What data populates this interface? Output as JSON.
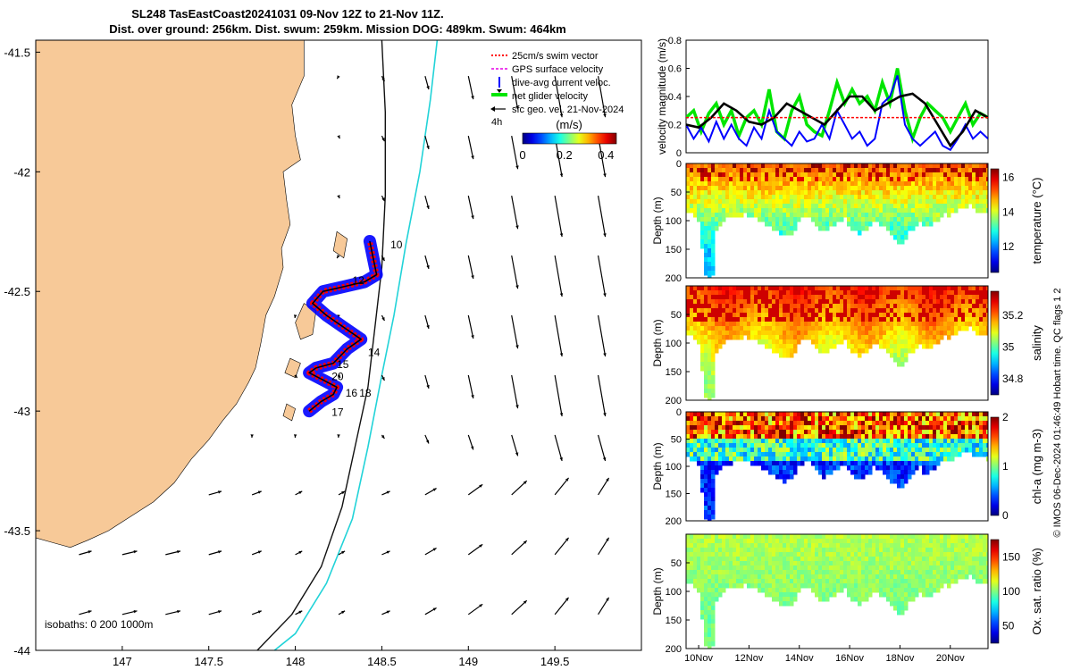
{
  "title": {
    "line1": "SL248 TasEastCoast20241031 09-Nov 12Z to 21-Nov 11Z.",
    "line2": "Dist. over ground: 256km. Dist. swum: 259km. Mission DOG: 489km. Swum: 464km"
  },
  "credit": "© IMOS 06-Dec-2024 01:46:49 Hobart time. QC flags 1  2",
  "colors": {
    "land": "#f7c998",
    "coast_line": "#000000",
    "isobath_200": "#111111",
    "isobath_1000": "#22d3d8",
    "track_red": "#ff0000",
    "track_blue": "#0000ff",
    "track_black": "#000000",
    "line_green": "#00e600",
    "line_red": "#ff0000"
  },
  "chart_data": [
    {
      "type": "map",
      "id": "track-map",
      "xlim": [
        146.5,
        150.0
      ],
      "ylim": [
        -44.0,
        -41.45
      ],
      "x_ticks": [
        "147",
        "147.5",
        "148",
        "148.5",
        "149",
        "149.5"
      ],
      "x_tick_values": [
        147,
        147.5,
        148,
        148.5,
        149,
        149.5
      ],
      "y_ticks": [
        "-41.5",
        "-42",
        "-42.5",
        "-43",
        "-43.5",
        "-44"
      ],
      "y_tick_values": [
        -41.5,
        -42,
        -42.5,
        -43,
        -43.5,
        -44
      ],
      "legend": [
        {
          "label": "25cm/s swim vector",
          "style": "dotted-red"
        },
        {
          "label": "GPS surface velocity",
          "style": "magenta"
        },
        {
          "label": "dive-avg current veloc.",
          "style": "blue"
        },
        {
          "label": "net glider velocity",
          "style": "green"
        },
        {
          "label": "sfc geo. vel. 21-Nov-2024",
          "style": "black-arrow"
        }
      ],
      "legend_extra": "4h",
      "colorbar": {
        "label": "(m/s)",
        "ticks": [
          "0",
          "0.2",
          "0.4"
        ],
        "range": [
          0,
          0.45
        ]
      },
      "isobaths_label": "isobaths: 0   200  1000m",
      "day_labels": [
        {
          "day": "10",
          "lon": 148.55,
          "lat": -42.32
        },
        {
          "day": "12",
          "lon": 148.33,
          "lat": -42.47
        },
        {
          "day": "14",
          "lon": 148.42,
          "lat": -42.77
        },
        {
          "day": "15",
          "lon": 148.24,
          "lat": -42.82
        },
        {
          "day": "20",
          "lon": 148.21,
          "lat": -42.87
        },
        {
          "day": "16",
          "lon": 148.29,
          "lat": -42.94
        },
        {
          "day": "18",
          "lon": 148.37,
          "lat": -42.94
        },
        {
          "day": "17",
          "lon": 148.21,
          "lat": -43.02
        }
      ],
      "track": [
        [
          148.08,
          -43.0
        ],
        [
          148.15,
          -42.96
        ],
        [
          148.22,
          -42.93
        ],
        [
          148.24,
          -42.9
        ],
        [
          148.16,
          -42.87
        ],
        [
          148.08,
          -42.84
        ],
        [
          148.12,
          -42.82
        ],
        [
          148.22,
          -42.8
        ],
        [
          148.3,
          -42.74
        ],
        [
          148.38,
          -42.7
        ],
        [
          148.3,
          -42.66
        ],
        [
          148.18,
          -42.6
        ],
        [
          148.1,
          -42.55
        ],
        [
          148.16,
          -42.5
        ],
        [
          148.28,
          -42.48
        ],
        [
          148.4,
          -42.46
        ],
        [
          148.47,
          -42.43
        ],
        [
          148.45,
          -42.36
        ],
        [
          148.43,
          -42.29
        ]
      ],
      "coastline": [
        [
          146.5,
          -41.45
        ],
        [
          148.05,
          -41.45
        ],
        [
          148.05,
          -41.6
        ],
        [
          147.98,
          -41.72
        ],
        [
          148.0,
          -41.85
        ],
        [
          148.03,
          -41.95
        ],
        [
          147.93,
          -42.0
        ],
        [
          147.95,
          -42.12
        ],
        [
          147.97,
          -42.22
        ],
        [
          147.92,
          -42.32
        ],
        [
          147.93,
          -42.4
        ],
        [
          147.88,
          -42.52
        ],
        [
          147.83,
          -42.6
        ],
        [
          147.8,
          -42.72
        ],
        [
          147.77,
          -42.82
        ],
        [
          147.73,
          -42.88
        ],
        [
          147.66,
          -42.97
        ],
        [
          147.58,
          -43.04
        ],
        [
          147.5,
          -43.12
        ],
        [
          147.4,
          -43.2
        ],
        [
          147.3,
          -43.3
        ],
        [
          147.18,
          -43.38
        ],
        [
          147.05,
          -43.44
        ],
        [
          146.92,
          -43.5
        ],
        [
          146.8,
          -43.54
        ],
        [
          146.7,
          -43.57
        ],
        [
          146.6,
          -43.55
        ],
        [
          146.5,
          -43.53
        ]
      ],
      "isobath_200": [
        [
          148.5,
          -41.45
        ],
        [
          148.52,
          -41.75
        ],
        [
          148.52,
          -42.1
        ],
        [
          148.5,
          -42.4
        ],
        [
          148.46,
          -42.65
        ],
        [
          148.42,
          -42.9
        ],
        [
          148.36,
          -43.1
        ],
        [
          148.27,
          -43.4
        ],
        [
          148.15,
          -43.65
        ],
        [
          147.98,
          -43.85
        ],
        [
          147.78,
          -44.0
        ]
      ],
      "isobath_1000": [
        [
          148.82,
          -41.45
        ],
        [
          148.78,
          -41.7
        ],
        [
          148.72,
          -42.0
        ],
        [
          148.64,
          -42.3
        ],
        [
          148.57,
          -42.6
        ],
        [
          148.5,
          -42.85
        ],
        [
          148.42,
          -43.15
        ],
        [
          148.33,
          -43.45
        ],
        [
          148.18,
          -43.72
        ],
        [
          148.0,
          -43.93
        ],
        [
          147.88,
          -44.0
        ]
      ],
      "velocity_field": "surface geostrophic velocity arrows, 0.25° grid, stronger southward flow offshore east of 148.6°E"
    },
    {
      "type": "line",
      "id": "velocity-magnitude",
      "ylabel": "velocity magnitude (m/s)",
      "ylim": [
        0,
        0.8
      ],
      "y_ticks": [
        "0",
        "0.2",
        "0.4",
        "0.6",
        "0.8"
      ],
      "y_tick_values": [
        0,
        0.2,
        0.4,
        0.6,
        0.8
      ],
      "x_day_range": [
        9.5,
        21.5
      ],
      "series": [
        {
          "name": "net glider velocity",
          "color": "#00e600",
          "x": [
            9.5,
            9.8,
            10.1,
            10.4,
            10.7,
            11.0,
            11.3,
            11.6,
            11.9,
            12.2,
            12.5,
            12.8,
            13.1,
            13.4,
            13.7,
            14.0,
            14.3,
            14.6,
            14.9,
            15.2,
            15.5,
            15.8,
            16.1,
            16.4,
            16.7,
            17.0,
            17.3,
            17.6,
            17.9,
            18.2,
            18.5,
            18.8,
            19.1,
            19.4,
            19.7,
            20.0,
            20.3,
            20.6,
            20.9,
            21.2,
            21.5
          ],
          "y": [
            0.25,
            0.3,
            0.15,
            0.28,
            0.35,
            0.2,
            0.3,
            0.12,
            0.25,
            0.3,
            0.2,
            0.45,
            0.15,
            0.1,
            0.3,
            0.4,
            0.2,
            0.15,
            0.12,
            0.3,
            0.5,
            0.35,
            0.45,
            0.35,
            0.4,
            0.3,
            0.5,
            0.35,
            0.6,
            0.3,
            0.1,
            0.25,
            0.35,
            0.3,
            0.25,
            0.15,
            0.25,
            0.35,
            0.2,
            0.28,
            0.25
          ]
        },
        {
          "name": "dive-avg current",
          "color": "#0000ff",
          "x": [
            9.5,
            9.8,
            10.1,
            10.4,
            10.7,
            11.0,
            11.3,
            11.6,
            11.9,
            12.2,
            12.5,
            12.8,
            13.1,
            13.4,
            13.7,
            14.0,
            14.3,
            14.6,
            14.9,
            15.2,
            15.5,
            15.8,
            16.1,
            16.4,
            16.7,
            17.0,
            17.3,
            17.6,
            17.9,
            18.2,
            18.5,
            18.8,
            19.1,
            19.4,
            19.7,
            20.0,
            20.3,
            20.6,
            20.9,
            21.2,
            21.5
          ],
          "y": [
            0.2,
            0.1,
            0.18,
            0.08,
            0.22,
            0.1,
            0.2,
            0.1,
            0.05,
            0.18,
            0.1,
            0.3,
            0.15,
            0.1,
            0.05,
            0.15,
            0.08,
            0.1,
            0.2,
            0.1,
            0.3,
            0.2,
            0.1,
            0.15,
            0.05,
            0.1,
            0.35,
            0.4,
            0.55,
            0.2,
            0.1,
            0.05,
            0.1,
            0.15,
            0.05,
            0.02,
            0.1,
            0.2,
            0.1,
            0.15,
            0.1
          ]
        },
        {
          "name": "sfc geo. vel.",
          "color": "#000000",
          "x": [
            9.5,
            10.0,
            10.5,
            11.0,
            11.5,
            12.0,
            12.5,
            13.0,
            13.5,
            14.0,
            14.5,
            15.0,
            15.5,
            16.0,
            16.5,
            17.0,
            17.5,
            18.0,
            18.5,
            19.0,
            19.5,
            20.0,
            20.5,
            21.0,
            21.5
          ],
          "y": [
            0.2,
            0.18,
            0.25,
            0.35,
            0.3,
            0.22,
            0.2,
            0.25,
            0.35,
            0.3,
            0.25,
            0.2,
            0.3,
            0.4,
            0.4,
            0.3,
            0.35,
            0.4,
            0.42,
            0.35,
            0.2,
            0.05,
            0.15,
            0.3,
            0.25
          ]
        },
        {
          "name": "25cm/s swim vector",
          "color": "#ff0000",
          "x": [
            9.5,
            21.5
          ],
          "y": [
            0.25,
            0.25
          ]
        }
      ]
    },
    {
      "type": "heatmap",
      "id": "temperature",
      "ylabel": "Depth (m)",
      "cbar_label": "temperature (°C)",
      "cbar_ticks": [
        "12",
        "14",
        "16"
      ],
      "cbar_tick_values": [
        12,
        14,
        16
      ],
      "crange": [
        10.5,
        16.5
      ],
      "ylim": [
        200,
        0
      ],
      "y_ticks": [
        "0",
        "50",
        "100",
        "150",
        "200"
      ],
      "y_tick_values": [
        0,
        50,
        100,
        150,
        200
      ],
      "surface_value": 15.2,
      "deep_value": 12.5
    },
    {
      "type": "heatmap",
      "id": "salinity",
      "ylabel": "Depth (m)",
      "cbar_label": "salinity",
      "cbar_ticks": [
        "34.8",
        "35",
        "35.2"
      ],
      "cbar_tick_values": [
        34.8,
        35.0,
        35.2
      ],
      "crange": [
        34.7,
        35.35
      ],
      "ylim": [
        200,
        0
      ],
      "y_ticks": [
        "50",
        "100",
        "150",
        "200"
      ],
      "y_tick_values": [
        50,
        100,
        150,
        200
      ],
      "surface_value": 35.25,
      "deep_value": 35.05
    },
    {
      "type": "heatmap",
      "id": "chlorophyll",
      "ylabel": "Depth (m)",
      "cbar_label": "chl-a (mg m-3)",
      "cbar_ticks": [
        "0",
        "1",
        "2"
      ],
      "cbar_tick_values": [
        0,
        1,
        2
      ],
      "crange": [
        0,
        2
      ],
      "ylim": [
        200,
        0
      ],
      "y_ticks": [
        "0",
        "50",
        "100",
        "150",
        "200"
      ],
      "y_tick_values": [
        0,
        50,
        100,
        150,
        200
      ],
      "surface_value": 1.6,
      "deep_value": 0.35
    },
    {
      "type": "heatmap",
      "id": "oxygen",
      "ylabel": "Depth (m)",
      "cbar_label": "Ox. sat. ratio (%)",
      "cbar_ticks": [
        "50",
        "100",
        "150"
      ],
      "cbar_tick_values": [
        50,
        100,
        150
      ],
      "crange": [
        25,
        175
      ],
      "ylim": [
        200,
        0
      ],
      "y_ticks": [
        "50",
        "100",
        "150",
        "200"
      ],
      "y_tick_values": [
        50,
        100,
        150,
        200
      ],
      "x_ticks": [
        "10Nov",
        "12Nov",
        "14Nov",
        "16Nov",
        "18Nov",
        "20Nov"
      ],
      "x_tick_values": [
        10,
        12,
        14,
        16,
        18,
        20
      ],
      "surface_value": 108,
      "deep_value": 98
    }
  ],
  "section_x_range": [
    9.5,
    21.5
  ],
  "section_bottom_profile": {
    "day": [
      9.5,
      10.0,
      10.3,
      10.4,
      10.55,
      10.7,
      11.0,
      11.4,
      11.8,
      12.2,
      12.6,
      13.0,
      13.4,
      13.8,
      14.0,
      14.3,
      14.7,
      15.0,
      15.4,
      15.8,
      16.0,
      16.4,
      16.8,
      17.0,
      17.4,
      17.8,
      18.0,
      18.4,
      18.8,
      19.0,
      19.4,
      19.8,
      20.0,
      20.4,
      20.8,
      21.0,
      21.5
    ],
    "depth": [
      78,
      95,
      200,
      200,
      200,
      110,
      95,
      90,
      85,
      92,
      100,
      112,
      125,
      115,
      95,
      85,
      105,
      118,
      102,
      92,
      108,
      120,
      110,
      95,
      110,
      130,
      140,
      115,
      98,
      110,
      100,
      82,
      88,
      75,
      68,
      78,
      82
    ]
  }
}
